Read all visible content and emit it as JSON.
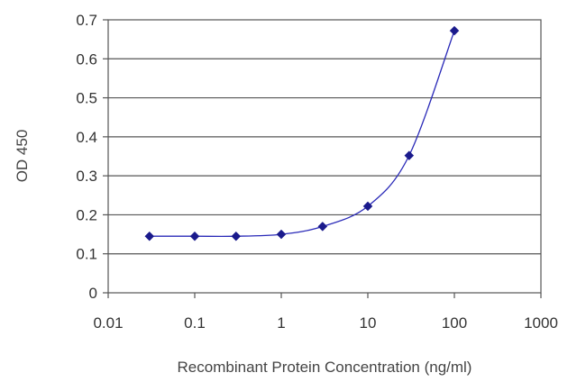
{
  "chart_data": {
    "type": "scatter",
    "title": "",
    "xlabel": "Recombinant Protein Concentration (ng/ml)",
    "ylabel": "OD 450",
    "xscale": "log",
    "xlim": [
      0.01,
      1000
    ],
    "ylim": [
      0,
      0.7
    ],
    "xticks": [
      0.01,
      0.1,
      1,
      10,
      100,
      1000
    ],
    "xtick_labels": [
      "0.01",
      "0.1",
      "1",
      "10",
      "100",
      "1000"
    ],
    "yticks": [
      0,
      0.1,
      0.2,
      0.3,
      0.4,
      0.5,
      0.6,
      0.7
    ],
    "ytick_labels": [
      "0",
      "0.1",
      "0.2",
      "0.3",
      "0.4",
      "0.5",
      "0.6",
      "0.7"
    ],
    "grid": "horizontal",
    "legend": "none",
    "series": [
      {
        "x": [
          0.03,
          0.1,
          0.3,
          1,
          3,
          10,
          30,
          100
        ],
        "y": [
          0.145,
          0.145,
          0.145,
          0.15,
          0.17,
          0.222,
          0.352,
          0.672
        ],
        "color": "#1a1a8c",
        "marker": "diamond",
        "fit_curve": true
      }
    ]
  }
}
